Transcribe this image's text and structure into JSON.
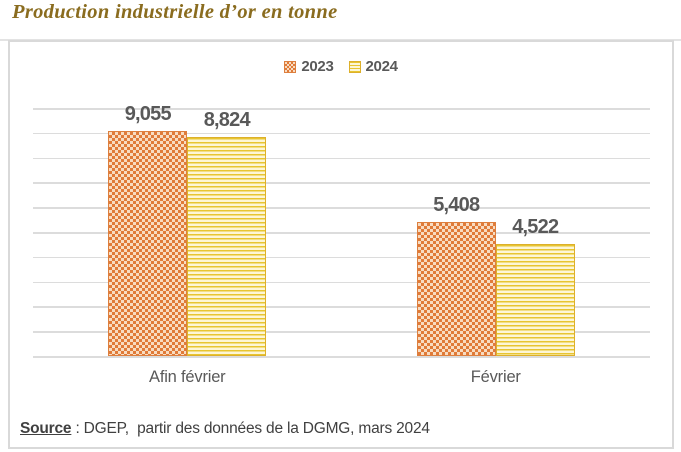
{
  "title": "Production industrielle d’or en tonne",
  "chart_data": {
    "type": "bar",
    "title": "Production industrielle d’or en tonne",
    "categories": [
      "Afin février",
      "Février"
    ],
    "series": [
      {
        "name": "2023",
        "values": [
          9055,
          5408
        ],
        "labels": [
          "9,055",
          "5,408"
        ],
        "pattern": "orange-dotted-diamond",
        "color": "#e07b39"
      },
      {
        "name": "2024",
        "values": [
          8824,
          4522
        ],
        "labels": [
          "8,824",
          "4,522"
        ],
        "pattern": "yellow-horizontal-stripes",
        "color": "#e7c231"
      }
    ],
    "xlabel": "",
    "ylabel": "",
    "ylim": [
      0,
      10000
    ],
    "grid_step": 1000,
    "grid": true,
    "y_axis_labels_visible": false,
    "legend_position": "top",
    "data_labels": true
  },
  "source": {
    "label": "Source",
    "rest": " : DGEP,  partir des données de la DGMG, mars 2024"
  },
  "colors": {
    "title_text": "#8a6c1f",
    "gridline": "#dcdcdc",
    "frame_border": "#d9d9d9",
    "label_text": "#595959",
    "source_text": "#404040",
    "series_2023": "#e07b39",
    "series_2023_bg": "#f8dcc1",
    "series_2024": "#e7c231",
    "series_2024_bg": "#fdf6d6"
  }
}
